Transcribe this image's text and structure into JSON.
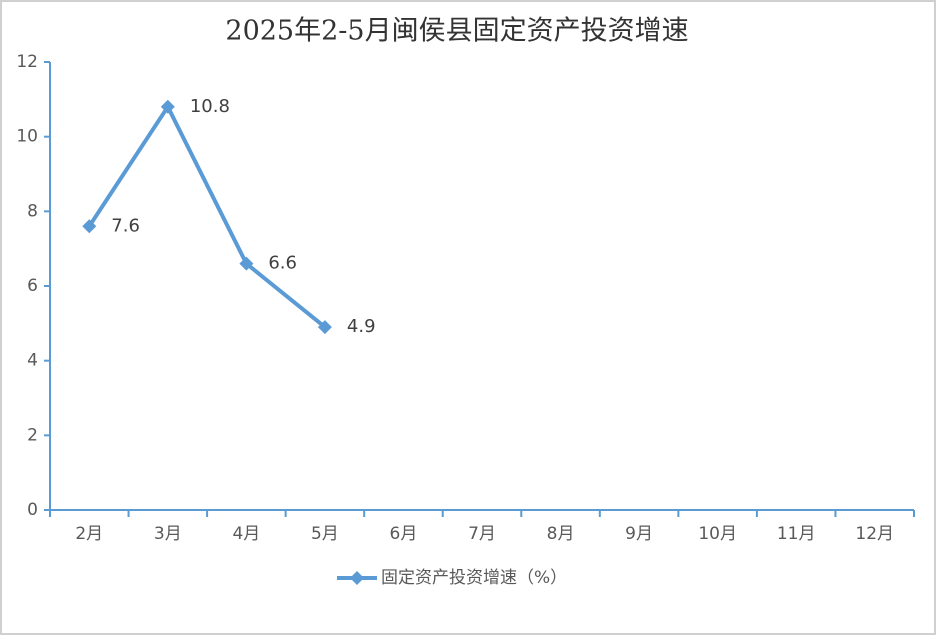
{
  "chart_data": {
    "type": "line",
    "title": "2025年2-5月闽侯县固定资产投资增速",
    "categories": [
      "2月",
      "3月",
      "4月",
      "5月",
      "6月",
      "7月",
      "8月",
      "9月",
      "10月",
      "11月",
      "12月"
    ],
    "series": [
      {
        "name": "固定资产投资增速（%）",
        "color": "#5b9bd5",
        "values": [
          7.6,
          10.8,
          6.6,
          4.9,
          null,
          null,
          null,
          null,
          null,
          null,
          null
        ]
      }
    ],
    "ylim": [
      0,
      12
    ],
    "yticks": [
      0,
      2,
      4,
      6,
      8,
      10,
      12
    ],
    "legend": "bottom"
  }
}
